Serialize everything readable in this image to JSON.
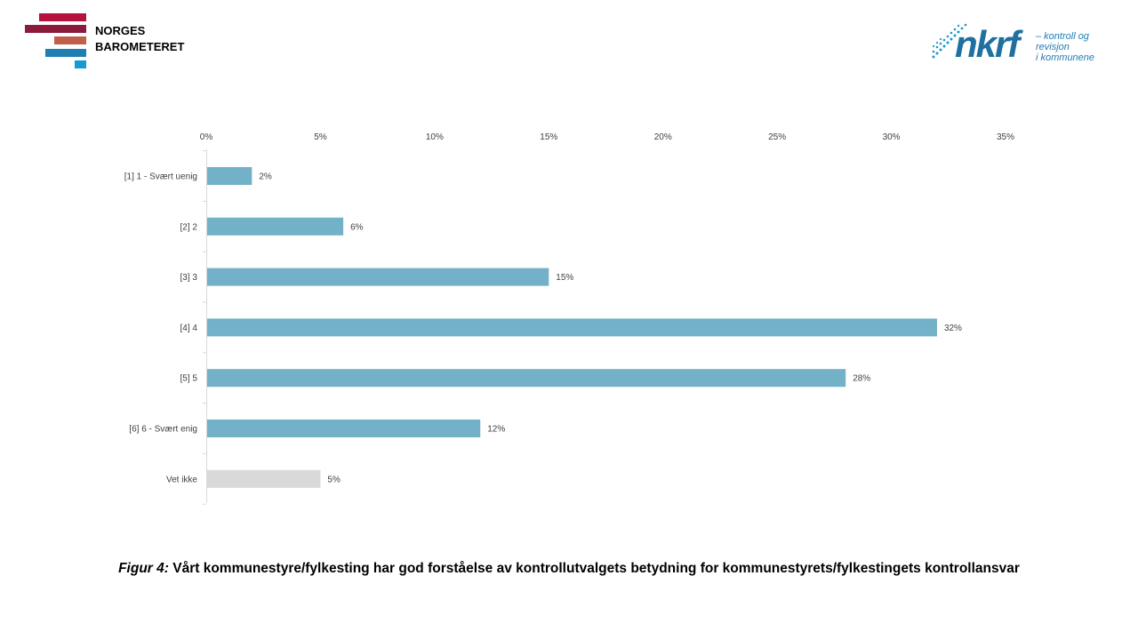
{
  "header": {
    "left_logo_text": "NORGES\nBAROMETERET",
    "right_logo_wordmark": "nkrf",
    "right_logo_tagline": "– kontroll og revisjon\ni kommunene"
  },
  "caption": {
    "prefix": "Figur 4:",
    "text": " Vårt kommunestyre/fylkesting har god forståelse av kontrollutvalgets betydning for kommunestyrets/fylkestingets kontrollansvar"
  },
  "colors": {
    "bar_main": "#72b1c7",
    "bar_dontknow": "#d9d9d9",
    "axis": "#d9d9d9",
    "text": "#404040",
    "logo_red": "#b5123e",
    "logo_darkred": "#8c1a3c",
    "logo_orange": "#c0604a",
    "logo_blue": "#1f7fb3",
    "logo_lightblue": "#1799d1"
  },
  "chart_data": {
    "type": "bar",
    "orientation": "horizontal",
    "categories": [
      "[1] 1 - Svært uenig",
      "[2] 2",
      "[3] 3",
      "[4] 4",
      "[5] 5",
      "[6] 6 - Svært enig",
      "Vet ikke"
    ],
    "values": [
      2,
      6,
      15,
      32,
      28,
      12,
      5
    ],
    "data_labels": [
      "2%",
      "6%",
      "15%",
      "32%",
      "28%",
      "12%",
      "5%"
    ],
    "bar_colors": [
      "#72b1c7",
      "#72b1c7",
      "#72b1c7",
      "#72b1c7",
      "#72b1c7",
      "#72b1c7",
      "#d9d9d9"
    ],
    "xlim": [
      0,
      35
    ],
    "x_ticks": [
      0,
      5,
      10,
      15,
      20,
      25,
      30,
      35
    ],
    "x_tick_labels": [
      "0%",
      "5%",
      "10%",
      "15%",
      "20%",
      "25%",
      "30%",
      "35%"
    ],
    "axis_position": "top",
    "grid": false,
    "legend": "none"
  }
}
